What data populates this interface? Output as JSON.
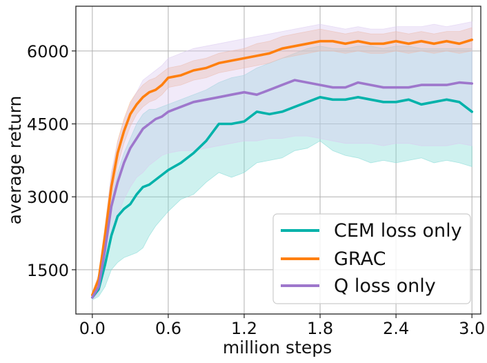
{
  "chart_data": {
    "type": "line",
    "title": "",
    "xlabel": "million steps",
    "ylabel": "average return",
    "xlim": [
      -0.13,
      3.07
    ],
    "ylim": [
      590,
      6920
    ],
    "xticks": [
      0.0,
      0.6,
      1.2,
      1.8,
      2.4,
      3.0
    ],
    "xtick_labels": [
      "0.0",
      "0.6",
      "1.2",
      "1.8",
      "2.4",
      "3.0"
    ],
    "yticks": [
      1500,
      3000,
      4500,
      6000
    ],
    "ytick_labels": [
      "1500",
      "3000",
      "4500",
      "6000"
    ],
    "grid": true,
    "legend_position": "lower-right",
    "x": [
      0.0,
      0.05,
      0.1,
      0.15,
      0.2,
      0.25,
      0.3,
      0.35,
      0.4,
      0.45,
      0.5,
      0.55,
      0.6,
      0.7,
      0.8,
      0.9,
      1.0,
      1.1,
      1.2,
      1.3,
      1.4,
      1.5,
      1.6,
      1.7,
      1.8,
      1.9,
      2.0,
      2.1,
      2.2,
      2.3,
      2.4,
      2.5,
      2.6,
      2.7,
      2.8,
      2.9,
      3.0
    ],
    "series": [
      {
        "name": "CEM loss only",
        "color": "#00b2aa",
        "band_color": "#7fd9d4",
        "mean": [
          930,
          1100,
          1600,
          2200,
          2600,
          2750,
          2850,
          3050,
          3200,
          3250,
          3350,
          3450,
          3550,
          3700,
          3900,
          4150,
          4500,
          4500,
          4550,
          4750,
          4700,
          4750,
          4850,
          4950,
          5050,
          5000,
          5000,
          5050,
          5000,
          4950,
          4950,
          5000,
          4900,
          4950,
          5000,
          4950,
          4750
        ],
        "lower": [
          880,
          950,
          1150,
          1500,
          1650,
          1750,
          1800,
          1850,
          1950,
          2200,
          2400,
          2550,
          2700,
          2950,
          3050,
          3300,
          3500,
          3400,
          3500,
          3700,
          3750,
          3800,
          3950,
          4000,
          4150,
          3950,
          3850,
          3800,
          3700,
          3750,
          3700,
          3750,
          3800,
          3700,
          3750,
          3700,
          3620
        ],
        "upper": [
          1000,
          1300,
          2050,
          2900,
          3500,
          3900,
          4200,
          4500,
          4700,
          4800,
          4800,
          4850,
          4900,
          5000,
          5100,
          5200,
          5350,
          5450,
          5500,
          5650,
          5750,
          5850,
          5950,
          6050,
          6100,
          6050,
          6050,
          6100,
          6100,
          6050,
          6100,
          6100,
          6050,
          6050,
          6050,
          6050,
          6050
        ]
      },
      {
        "name": "GRAC",
        "color": "#ff7f0e",
        "band_color": "#f5b487",
        "mean": [
          980,
          1300,
          2200,
          3200,
          3900,
          4350,
          4700,
          4900,
          5050,
          5150,
          5200,
          5300,
          5450,
          5500,
          5600,
          5650,
          5750,
          5800,
          5850,
          5900,
          5950,
          6050,
          6100,
          6150,
          6200,
          6200,
          6150,
          6200,
          6150,
          6150,
          6200,
          6150,
          6200,
          6150,
          6200,
          6150,
          6230
        ],
        "lower": [
          930,
          1200,
          2000,
          2950,
          3650,
          4100,
          4450,
          4700,
          4850,
          4950,
          5000,
          5100,
          5250,
          5300,
          5400,
          5450,
          5550,
          5600,
          5650,
          5700,
          5750,
          5850,
          5900,
          5950,
          6000,
          6000,
          5950,
          6000,
          5950,
          5950,
          6000,
          5950,
          6000,
          5950,
          6000,
          5950,
          6000
        ],
        "upper": [
          1030,
          1400,
          2400,
          3450,
          4150,
          4600,
          4950,
          5150,
          5300,
          5400,
          5450,
          5550,
          5650,
          5700,
          5800,
          5850,
          5950,
          6000,
          6050,
          6150,
          6200,
          6300,
          6350,
          6400,
          6450,
          6400,
          6350,
          6400,
          6350,
          6350,
          6400,
          6350,
          6400,
          6350,
          6400,
          6400,
          6480
        ]
      },
      {
        "name": "Q loss only",
        "color": "#9e77cc",
        "band_color": "#dbc9f0",
        "mean": [
          930,
          1150,
          1900,
          2800,
          3300,
          3700,
          4000,
          4200,
          4400,
          4500,
          4600,
          4650,
          4750,
          4850,
          4950,
          5000,
          5050,
          5100,
          5150,
          5100,
          5200,
          5300,
          5400,
          5350,
          5300,
          5250,
          5250,
          5350,
          5300,
          5250,
          5250,
          5250,
          5300,
          5300,
          5300,
          5350,
          5330
        ],
        "lower": [
          880,
          1000,
          1500,
          2150,
          2600,
          2950,
          3200,
          3400,
          3500,
          3650,
          3750,
          3850,
          3900,
          3950,
          3950,
          4000,
          4050,
          4100,
          4150,
          4150,
          4200,
          4200,
          4250,
          4250,
          4200,
          4150,
          4100,
          4100,
          4100,
          4050,
          4100,
          4100,
          4050,
          4050,
          4050,
          4100,
          4050
        ],
        "upper": [
          1000,
          1350,
          2350,
          3500,
          4100,
          4550,
          4900,
          5150,
          5400,
          5500,
          5600,
          5700,
          5850,
          5950,
          6050,
          6100,
          6150,
          6200,
          6250,
          6300,
          6350,
          6400,
          6450,
          6500,
          6550,
          6500,
          6450,
          6500,
          6450,
          6450,
          6500,
          6500,
          6500,
          6550,
          6500,
          6550,
          6600
        ]
      }
    ]
  }
}
